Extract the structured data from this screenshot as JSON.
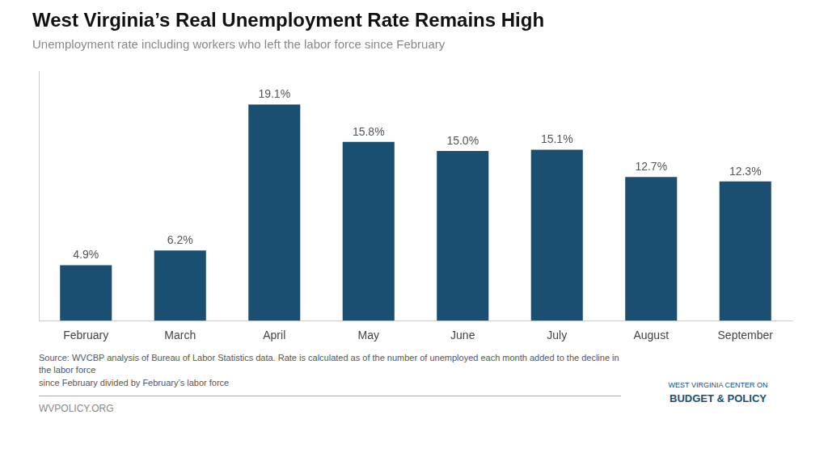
{
  "chart_data": {
    "type": "bar",
    "title": "West Virginia’s Real Unemployment Rate Remains High",
    "subtitle": "Unemployment rate including workers who left the labor force since February",
    "categories": [
      "February",
      "March",
      "April",
      "May",
      "June",
      "July",
      "August",
      "September"
    ],
    "values": [
      4.9,
      6.2,
      19.1,
      15.8,
      15.0,
      15.1,
      12.7,
      12.3
    ],
    "value_labels": [
      "4.9%",
      "6.2%",
      "19.1%",
      "15.8%",
      "15.0%",
      "15.1%",
      "12.7%",
      "12.3%"
    ],
    "color": "#1b4f72",
    "ylim": [
      0,
      22
    ],
    "grid": false,
    "data_labels": true,
    "tick_labels": "x",
    "annotations": [
      "Source: WVCBP analysis of Bureau of Labor Statistics data. Rate is calculated as of the number of unemployed each month added to the decline in the labor force\nsince February divided by February’s  labor force",
      "WVPOLICY.ORG",
      "WEST VIRGINIA CENTER ON",
      "BUDGET & POLICY"
    ]
  }
}
